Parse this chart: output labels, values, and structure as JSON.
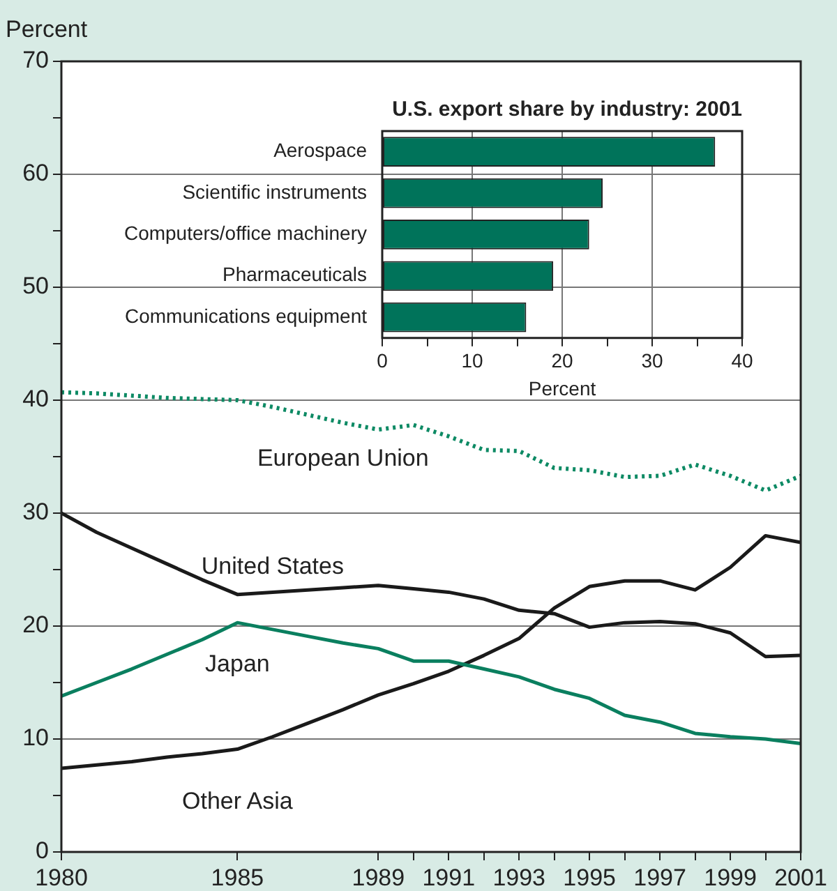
{
  "chart_data": [
    {
      "type": "line",
      "ylabel": "Percent",
      "x": [
        1980,
        1981,
        1982,
        1983,
        1984,
        1985,
        1986,
        1987,
        1988,
        1989,
        1990,
        1991,
        1992,
        1993,
        1994,
        1995,
        1996,
        1997,
        1998,
        1999,
        2000,
        2001
      ],
      "series": [
        {
          "name": "European Union",
          "color": "#0d8a64",
          "line_style": "dotted",
          "values": [
            40.7,
            40.6,
            40.4,
            40.2,
            40.1,
            40.0,
            39.4,
            38.7,
            38.0,
            37.4,
            37.8,
            36.8,
            35.6,
            35.5,
            34.0,
            33.8,
            33.2,
            33.3,
            34.3,
            33.3,
            32.0,
            33.3
          ]
        },
        {
          "name": "United States",
          "color": "#1a1a1a",
          "values": [
            30.0,
            28.3,
            26.9,
            25.5,
            24.1,
            22.8,
            23.0,
            23.2,
            23.4,
            23.6,
            23.3,
            23.0,
            22.4,
            21.4,
            21.1,
            19.9,
            20.3,
            20.4,
            20.2,
            19.4,
            17.3,
            17.4
          ]
        },
        {
          "name": "Japan",
          "color": "#0a7f5f",
          "values": [
            13.8,
            15.0,
            16.2,
            17.5,
            18.8,
            20.3,
            19.7,
            19.1,
            18.5,
            18.0,
            16.9,
            16.9,
            16.2,
            15.5,
            14.4,
            13.6,
            12.1,
            11.5,
            10.5,
            10.2,
            10.0,
            9.6
          ]
        },
        {
          "name": "Other Asia",
          "color": "#1a1a1a",
          "values": [
            7.4,
            7.7,
            8.0,
            8.4,
            8.7,
            9.1,
            10.2,
            11.4,
            12.6,
            13.9,
            14.9,
            16.0,
            17.4,
            18.9,
            21.6,
            23.5,
            24.0,
            24.0,
            23.2,
            25.2,
            28.0,
            27.4
          ]
        }
      ],
      "xlim": [
        1980,
        2001
      ],
      "xticks": [
        1980,
        1985,
        1989,
        {
          "value": 1990,
          "label": null
        },
        1991,
        {
          "value": 1992,
          "label": null
        },
        1993,
        {
          "value": 1994,
          "label": null
        },
        1995,
        {
          "value": 1996,
          "label": null
        },
        1997,
        {
          "value": 1998,
          "label": null
        },
        1999,
        {
          "value": 2000,
          "label": null
        },
        2001
      ],
      "ylim": [
        0,
        70
      ],
      "yticks": [
        0,
        {
          "value": 5,
          "label": null
        },
        10,
        {
          "value": 15,
          "label": null
        },
        20,
        {
          "value": 25,
          "label": null
        },
        30,
        {
          "value": 35,
          "label": null
        },
        40,
        {
          "value": 45,
          "label": null
        },
        50,
        {
          "value": 55,
          "label": null
        },
        60,
        {
          "value": 65,
          "label": null
        },
        70
      ],
      "grid": "y",
      "legend": false
    },
    {
      "type": "bar",
      "orientation": "horizontal",
      "title": "U.S. export share by industry: 2001",
      "xlabel": "Percent",
      "categories": [
        "Aerospace",
        "Scientific instruments",
        "Computers/office machinery",
        "Pharmaceuticals",
        "Communications equipment"
      ],
      "values": [
        37,
        24.5,
        23,
        19,
        16
      ],
      "color": "#00735a",
      "xlim": [
        0,
        40
      ],
      "xticks": [
        0,
        {
          "value": 5,
          "label": null
        },
        10,
        {
          "value": 15,
          "label": null
        },
        20,
        {
          "value": 25,
          "label": null
        },
        30,
        {
          "value": 35,
          "label": null
        },
        40
      ],
      "grid": "x",
      "legend": false
    }
  ]
}
